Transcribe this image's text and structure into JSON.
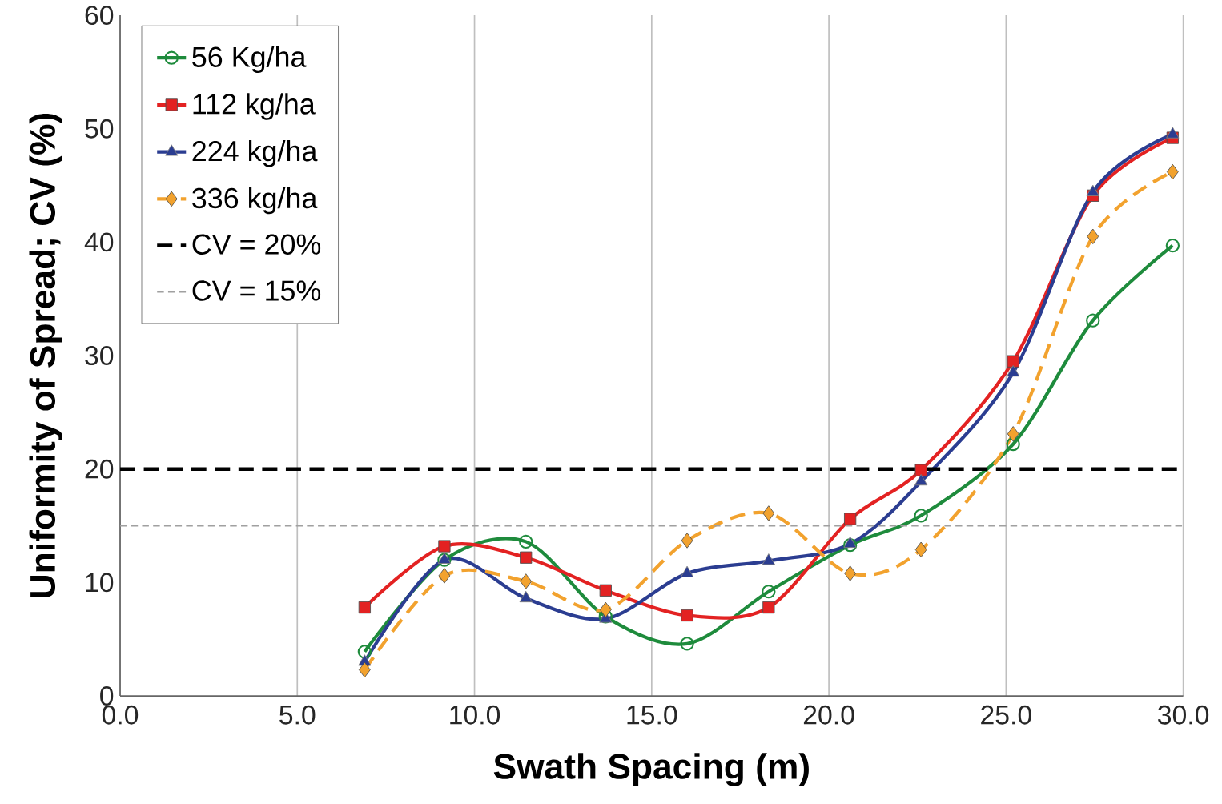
{
  "chart_data": {
    "type": "line",
    "xlabel": "Swath Spacing (m)",
    "ylabel": "Uniformity of Spread; CV (%)",
    "xlim": [
      0,
      30
    ],
    "ylim": [
      0,
      60
    ],
    "xticks": [
      {
        "value": 0,
        "label": "0.0"
      },
      {
        "value": 5,
        "label": "5.0"
      },
      {
        "value": 10,
        "label": "10.0"
      },
      {
        "value": 15,
        "label": "15.0"
      },
      {
        "value": 20,
        "label": "20.0"
      },
      {
        "value": 25,
        "label": "25.0"
      },
      {
        "value": 30,
        "label": "30.0"
      }
    ],
    "yticks": [
      0,
      10,
      20,
      30,
      40,
      50,
      60
    ],
    "grid": "x",
    "legend": "top left",
    "x": [
      6.9,
      9.15,
      11.45,
      13.7,
      16.0,
      18.3,
      20.6,
      22.6,
      25.2,
      27.45,
      29.7
    ],
    "series": [
      {
        "name": "56 Kg/ha",
        "color": "#1e8b3c",
        "marker": "circle",
        "line_style": "solid",
        "values": [
          3.9,
          12.0,
          13.6,
          7.0,
          4.6,
          9.2,
          13.3,
          15.9,
          22.2,
          33.1,
          39.7
        ]
      },
      {
        "name": "112 kg/ha",
        "color": "#e32222",
        "marker": "square",
        "line_style": "solid",
        "values": [
          7.8,
          13.2,
          12.2,
          9.3,
          7.1,
          7.8,
          15.6,
          19.9,
          29.5,
          44.1,
          49.2
        ]
      },
      {
        "name": "224 kg/ha",
        "color": "#2b3d91",
        "marker": "triangle",
        "line_style": "solid",
        "values": [
          3.0,
          12.0,
          8.6,
          6.8,
          10.8,
          11.9,
          13.4,
          18.9,
          28.5,
          44.4,
          49.5
        ]
      },
      {
        "name": "336 kg/ha",
        "color": "#f2a22e",
        "marker": "diamond",
        "line_style": "dashed",
        "values": [
          2.3,
          10.6,
          10.1,
          7.6,
          13.7,
          16.1,
          10.8,
          12.9,
          23.1,
          40.5,
          46.2
        ]
      }
    ],
    "ref_lines": [
      {
        "axis": "y",
        "value": 20,
        "label": "CV = 20%",
        "color": "#000000",
        "line_style": "dashed"
      },
      {
        "axis": "y",
        "value": 15,
        "label": "CV = 15%",
        "color": "#a0a0a0",
        "line_style": "dashed"
      }
    ]
  }
}
